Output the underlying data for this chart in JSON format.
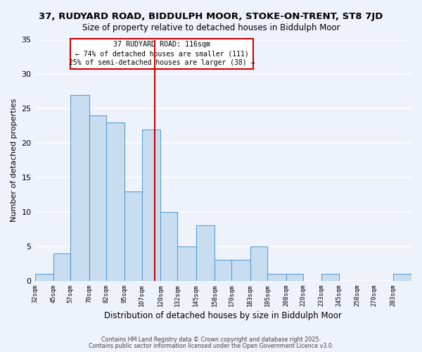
{
  "title": "37, RUDYARD ROAD, BIDDULPH MOOR, STOKE-ON-TRENT, ST8 7JD",
  "subtitle": "Size of property relative to detached houses in Biddulph Moor",
  "xlabel": "Distribution of detached houses by size in Biddulph Moor",
  "ylabel": "Number of detached properties",
  "bar_values": [
    1,
    4,
    27,
    24,
    23,
    13,
    22,
    10,
    5,
    8,
    3,
    3,
    5,
    1,
    1,
    0,
    1,
    0,
    0,
    0,
    1
  ],
  "bin_edges": [
    32,
    45,
    57,
    70,
    82,
    95,
    107,
    120,
    132,
    145,
    158,
    170,
    183,
    195,
    208,
    220,
    233,
    245,
    258,
    270,
    283,
    296
  ],
  "tick_positions": [
    32,
    45,
    57,
    70,
    82,
    95,
    107,
    120,
    132,
    145,
    158,
    170,
    183,
    195,
    208,
    220,
    233,
    245,
    258,
    270,
    283
  ],
  "tick_labels": [
    "32sqm",
    "45sqm",
    "57sqm",
    "70sqm",
    "82sqm",
    "95sqm",
    "107sqm",
    "120sqm",
    "132sqm",
    "145sqm",
    "158sqm",
    "170sqm",
    "183sqm",
    "195sqm",
    "208sqm",
    "220sqm",
    "233sqm",
    "245sqm",
    "258sqm",
    "270sqm",
    "283sqm"
  ],
  "bar_color": "#c8ddf0",
  "bar_edgecolor": "#5a9fd4",
  "bg_color": "#eef2fb",
  "grid_color": "#ffffff",
  "vline_x": 116,
  "vline_color": "#cc0000",
  "annotation_title": "37 RUDYARD ROAD: 116sqm",
  "annotation_line1": "← 74% of detached houses are smaller (111)",
  "annotation_line2": "25% of semi-detached houses are larger (38) →",
  "annotation_box_edgecolor": "#cc0000",
  "ylim": [
    0,
    35
  ],
  "yticks": [
    0,
    5,
    10,
    15,
    20,
    25,
    30,
    35
  ],
  "footnote1": "Contains HM Land Registry data © Crown copyright and database right 2025.",
  "footnote2": "Contains public sector information licensed under the Open Government Licence v3.0."
}
